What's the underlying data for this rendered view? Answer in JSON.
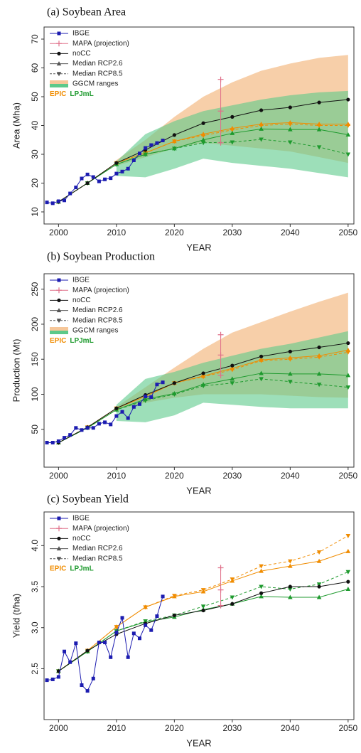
{
  "chart_data": [
    {
      "type": "line",
      "title": "(a) Soybean Area",
      "xlabel": "YEAR",
      "ylabel": "Area (Mha)",
      "xlim": [
        1997.5,
        2051
      ],
      "ylim": [
        5.8,
        74.2
      ],
      "xticks": [
        2000,
        2010,
        2020,
        2030,
        2040,
        2050
      ],
      "yticks": [
        10,
        20,
        30,
        40,
        50,
        60,
        70
      ],
      "series": [
        {
          "name": "IBGE",
          "color": "#1c1cb0",
          "marker": "square",
          "x": [
            1998,
            1999,
            2000,
            2001,
            2002,
            2003,
            2004,
            2005,
            2006,
            2007,
            2008,
            2009,
            2010,
            2011,
            2012,
            2013,
            2014,
            2015,
            2016,
            2017,
            2018
          ],
          "values": [
            13.3,
            13.0,
            13.7,
            14.0,
            16.4,
            18.5,
            21.6,
            23.0,
            22.1,
            20.6,
            21.3,
            21.7,
            23.3,
            24.0,
            25.0,
            27.9,
            30.3,
            32.2,
            33.2,
            33.9,
            34.8
          ]
        },
        {
          "name": "MAPA (projection)",
          "color": "#e0708a",
          "marker": "plus",
          "x": [
            2028,
            2028,
            2028
          ],
          "values": [
            34,
            45,
            56
          ]
        },
        {
          "name": "noCC",
          "color": "#111111",
          "marker": "circle",
          "x": [
            2000,
            2005,
            2010,
            2015,
            2020,
            2025,
            2030,
            2035,
            2040,
            2045,
            2050
          ],
          "values": [
            13.5,
            20,
            27,
            31.5,
            36.7,
            40.8,
            43,
            45.3,
            46.3,
            48,
            49
          ]
        }
      ],
      "scenarios": [
        {
          "name": "Median RCP2.6",
          "marker": "triangle-up",
          "dashed": false
        },
        {
          "name": "Median RCP8.5",
          "marker": "triangle-down",
          "dashed": true
        }
      ],
      "range_label": "GGCM ranges",
      "models": [
        {
          "name": "EPIC",
          "color": "#f08c00",
          "range_color": "#f6c79a",
          "x": [
            2000,
            2005,
            2010,
            2015,
            2020,
            2025,
            2030,
            2035,
            2040,
            2045,
            2050
          ],
          "medians": [
            [
              13.5,
              20,
              27,
              30.5,
              34.5,
              37,
              39,
              40.5,
              41,
              40.5,
              40.5
            ],
            [
              13.5,
              20,
              27,
              30.5,
              34.5,
              36.5,
              38.5,
              40,
              40.5,
              40,
              40
            ]
          ],
          "range_x": [
            2010,
            2015,
            2020,
            2025,
            2030,
            2035,
            2040,
            2045,
            2050
          ],
          "range_low": [
            26,
            29,
            32,
            34,
            33,
            32,
            31,
            29,
            27
          ],
          "range_high": [
            28,
            35,
            43,
            50,
            55,
            59,
            61.5,
            63.5,
            64.5
          ]
        },
        {
          "name": "LPJmL",
          "color": "#1e9a2e",
          "range_color": "#5cc98a",
          "x": [
            2000,
            2005,
            2010,
            2015,
            2020,
            2025,
            2030,
            2035,
            2040,
            2045,
            2050
          ],
          "medians": [
            [
              13.5,
              20,
              26.5,
              30,
              32,
              35,
              37.3,
              38.8,
              38.6,
              38.6,
              36.8
            ],
            [
              13.5,
              20,
              26.5,
              30,
              32,
              34,
              34.2,
              35.2,
              34.2,
              32.5,
              30
            ]
          ],
          "range_x": [
            2010,
            2015,
            2020,
            2025,
            2030,
            2035,
            2040,
            2045,
            2050
          ],
          "range_low": [
            22.5,
            22,
            25,
            28.5,
            27,
            26,
            25,
            23.5,
            22
          ],
          "range_high": [
            27.5,
            37,
            41.5,
            45,
            47,
            49,
            50.5,
            51.5,
            52
          ]
        }
      ]
    },
    {
      "type": "line",
      "title": "(b) Soybean Production",
      "xlabel": "YEAR",
      "ylabel": "Production (Mt)",
      "xlim": [
        1997.5,
        2051
      ],
      "ylim": [
        -4,
        272
      ],
      "xticks": [
        2000,
        2010,
        2020,
        2030,
        2040,
        2050
      ],
      "yticks": [
        50,
        100,
        150,
        200,
        250
      ],
      "series": [
        {
          "name": "IBGE",
          "color": "#1c1cb0",
          "marker": "square",
          "x": [
            1998,
            1999,
            2000,
            2001,
            2002,
            2003,
            2004,
            2005,
            2006,
            2007,
            2008,
            2009,
            2010,
            2011,
            2012,
            2013,
            2014,
            2015,
            2016,
            2017,
            2018
          ],
          "values": [
            31,
            31,
            33,
            38,
            42,
            52,
            49,
            52,
            52,
            58,
            60,
            57,
            69,
            75,
            66,
            82,
            86,
            97,
            96,
            114,
            117
          ]
        },
        {
          "name": "MAPA (projection)",
          "color": "#e0708a",
          "marker": "plus",
          "x": [
            2028,
            2028,
            2028
          ],
          "values": [
            127,
            156,
            185
          ]
        },
        {
          "name": "noCC",
          "color": "#111111",
          "marker": "circle",
          "x": [
            2000,
            2005,
            2010,
            2015,
            2020,
            2025,
            2030,
            2035,
            2040,
            2045,
            2050
          ],
          "values": [
            31,
            53,
            80,
            99,
            116,
            130,
            141,
            154,
            161,
            167,
            173
          ]
        }
      ],
      "scenarios": [
        {
          "name": "Median RCP2.6",
          "marker": "triangle-up",
          "dashed": false
        },
        {
          "name": "Median RCP8.5",
          "marker": "triangle-down",
          "dashed": true
        }
      ],
      "range_label": "GGCM ranges",
      "models": [
        {
          "name": "EPIC",
          "color": "#f08c00",
          "range_color": "#f6c79a",
          "x": [
            2000,
            2005,
            2010,
            2015,
            2020,
            2025,
            2030,
            2035,
            2040,
            2045,
            2050
          ],
          "medians": [
            [
              31,
              53,
              80,
              97,
              116,
              126,
              137,
              149,
              152,
              155,
              163
            ],
            [
              31,
              53,
              80,
              97,
              116,
              125,
              135,
              148,
              150,
              153,
              160
            ]
          ],
          "range_x": [
            2010,
            2015,
            2020,
            2025,
            2030,
            2035,
            2040,
            2045,
            2050
          ],
          "range_low": [
            78,
            88,
            95,
            100,
            100,
            100,
            98,
            96,
            95
          ],
          "range_high": [
            82,
            110,
            138,
            165,
            188,
            203,
            218,
            232,
            245
          ]
        },
        {
          "name": "LPJmL",
          "color": "#1e9a2e",
          "range_color": "#5cc98a",
          "x": [
            2000,
            2005,
            2010,
            2015,
            2020,
            2025,
            2030,
            2035,
            2040,
            2045,
            2050
          ],
          "medians": [
            [
              31,
              52,
              78,
              93,
              101,
              114,
              122,
              130,
              129,
              129,
              127
            ],
            [
              31,
              52,
              78,
              91,
              100,
              112,
              116,
              122,
              118,
              114,
              110
            ]
          ],
          "range_x": [
            2010,
            2015,
            2020,
            2025,
            2030,
            2035,
            2040,
            2045,
            2050
          ],
          "range_low": [
            62,
            60,
            70,
            88,
            85,
            82,
            80,
            80,
            80
          ],
          "range_high": [
            85,
            122,
            132,
            145,
            155,
            165,
            172,
            181,
            190
          ]
        }
      ]
    },
    {
      "type": "line",
      "title": "(c) Soybean Yield",
      "xlabel": "YEAR",
      "ylabel": "Yield (t/ha)",
      "xlim": [
        1997.5,
        2051
      ],
      "ylim": [
        1.88,
        4.41
      ],
      "xticks": [
        2000,
        2010,
        2020,
        2030,
        2040,
        2050
      ],
      "yticks": [
        2.5,
        {
          "value": 3,
          "label": "3.0"
        },
        3.5,
        {
          "value": 4,
          "label": "4.0"
        }
      ],
      "series": [
        {
          "name": "IBGE",
          "color": "#1c1cb0",
          "marker": "square",
          "x": [
            1998,
            1999,
            2000,
            2001,
            2002,
            2003,
            2004,
            2005,
            2006,
            2007,
            2008,
            2009,
            2010,
            2011,
            2012,
            2013,
            2014,
            2015,
            2016,
            2017,
            2018
          ],
          "values": [
            2.36,
            2.37,
            2.4,
            2.71,
            2.58,
            2.81,
            2.3,
            2.23,
            2.38,
            2.82,
            2.82,
            2.64,
            2.94,
            3.12,
            2.64,
            2.93,
            2.87,
            3.03,
            2.97,
            3.14,
            3.38
          ]
        },
        {
          "name": "MAPA (projection)",
          "color": "#e0708a",
          "marker": "plus",
          "x": [
            2028,
            2028,
            2028
          ],
          "values": [
            3.27,
            3.46,
            3.73
          ]
        },
        {
          "name": "noCC",
          "color": "#111111",
          "marker": "circle",
          "x": [
            2000,
            2005,
            2010,
            2015,
            2020,
            2025,
            2030,
            2035,
            2040,
            2045,
            2050
          ],
          "values": [
            2.47,
            2.72,
            2.92,
            3.05,
            3.15,
            3.21,
            3.29,
            3.42,
            3.5,
            3.5,
            3.56
          ]
        }
      ],
      "scenarios": [
        {
          "name": "Median RCP2.6",
          "marker": "triangle-up",
          "dashed": false
        },
        {
          "name": "Median RCP8.5",
          "marker": "triangle-down",
          "dashed": true
        }
      ],
      "models": [
        {
          "name": "EPIC",
          "color": "#f08c00",
          "x": [
            2000,
            2005,
            2010,
            2015,
            2020,
            2025,
            2030,
            2035,
            2040,
            2045,
            2050
          ],
          "medians": [
            [
              2.47,
              2.72,
              3.01,
              3.25,
              3.38,
              3.44,
              3.57,
              3.69,
              3.75,
              3.81,
              3.93
            ],
            [
              2.47,
              2.72,
              3.01,
              3.25,
              3.39,
              3.46,
              3.59,
              3.75,
              3.81,
              3.92,
              4.12
            ]
          ]
        },
        {
          "name": "LPJmL",
          "color": "#1e9a2e",
          "x": [
            2000,
            2005,
            2010,
            2015,
            2020,
            2025,
            2030,
            2035,
            2040,
            2045,
            2050
          ],
          "medians": [
            [
              2.47,
              2.71,
              2.96,
              3.07,
              3.13,
              3.22,
              3.29,
              3.38,
              3.37,
              3.37,
              3.47
            ],
            [
              2.47,
              2.71,
              2.96,
              3.08,
              3.15,
              3.26,
              3.37,
              3.5,
              3.47,
              3.53,
              3.68
            ]
          ]
        }
      ]
    }
  ]
}
